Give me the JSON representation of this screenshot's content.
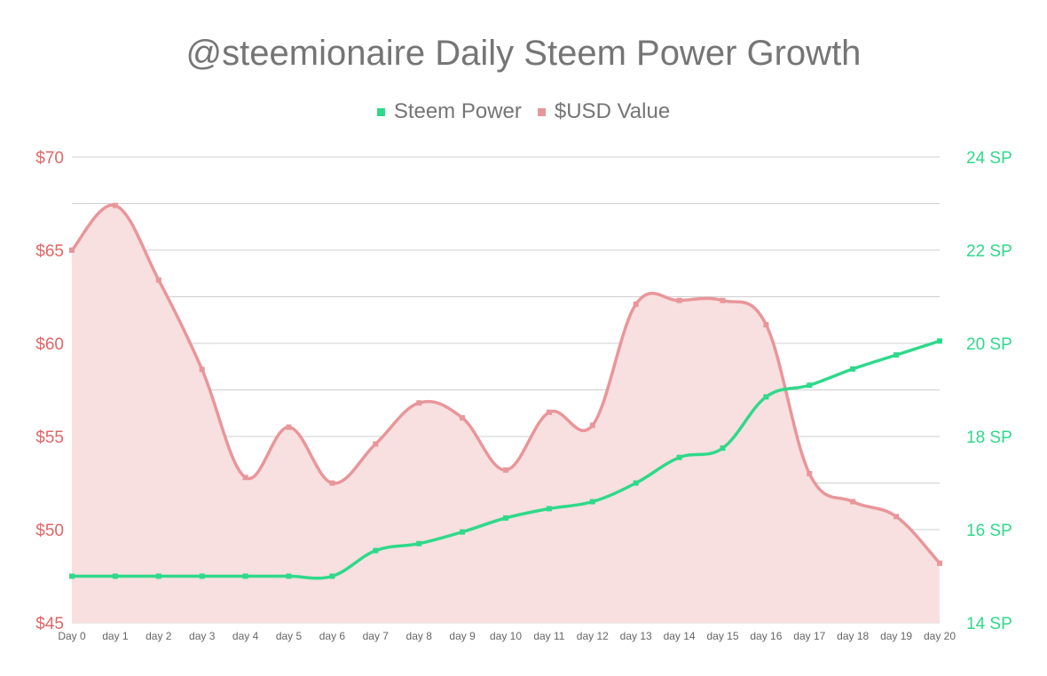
{
  "chart_data": {
    "type": "line",
    "title": "@steemionaire Daily Steem Power Growth",
    "categories": [
      "Day 0",
      "day 1",
      "day 2",
      "day 3",
      "day 4",
      "day 5",
      "day 6",
      "day 7",
      "day 8",
      "day 9",
      "day 10",
      "day 11",
      "day 12",
      "day 13",
      "day 14",
      "day 15",
      "day 16",
      "day 17",
      "day 18",
      "day 19",
      "day 20"
    ],
    "series": [
      {
        "name": "Steem Power",
        "axis": "right",
        "color": "#2fd98a",
        "values": [
          15.0,
          15.0,
          15.0,
          15.0,
          15.0,
          15.0,
          15.0,
          15.55,
          15.7,
          15.95,
          16.25,
          16.45,
          16.6,
          17.0,
          17.55,
          17.75,
          18.85,
          19.1,
          19.45,
          19.75,
          20.05
        ]
      },
      {
        "name": "$USD Value",
        "axis": "left",
        "color": "#e8969a",
        "fill": "#f8dfe0",
        "values": [
          65.0,
          67.4,
          63.4,
          58.6,
          52.8,
          55.5,
          52.5,
          54.6,
          56.8,
          56.0,
          53.2,
          56.3,
          55.6,
          62.1,
          62.3,
          62.3,
          61.0,
          53.0,
          51.5,
          50.7,
          48.2
        ]
      }
    ],
    "y_left": {
      "min": 45,
      "max": 70,
      "step": 5,
      "tick_labels": [
        "$45",
        "$50",
        "$55",
        "$60",
        "$65",
        "$70"
      ],
      "color": "#e06666"
    },
    "y_right": {
      "min": 14,
      "max": 24,
      "step": 2,
      "tick_labels": [
        "14 SP",
        "16 SP",
        "18 SP",
        "20 SP",
        "22 SP",
        "24 SP"
      ],
      "color": "#2fd98a"
    },
    "grid": true,
    "legend_position": "top-center"
  },
  "legend": {
    "items": [
      {
        "label": "Steem Power",
        "color": "#2fd98a"
      },
      {
        "label": "$USD Value",
        "color": "#e8969a"
      }
    ]
  }
}
